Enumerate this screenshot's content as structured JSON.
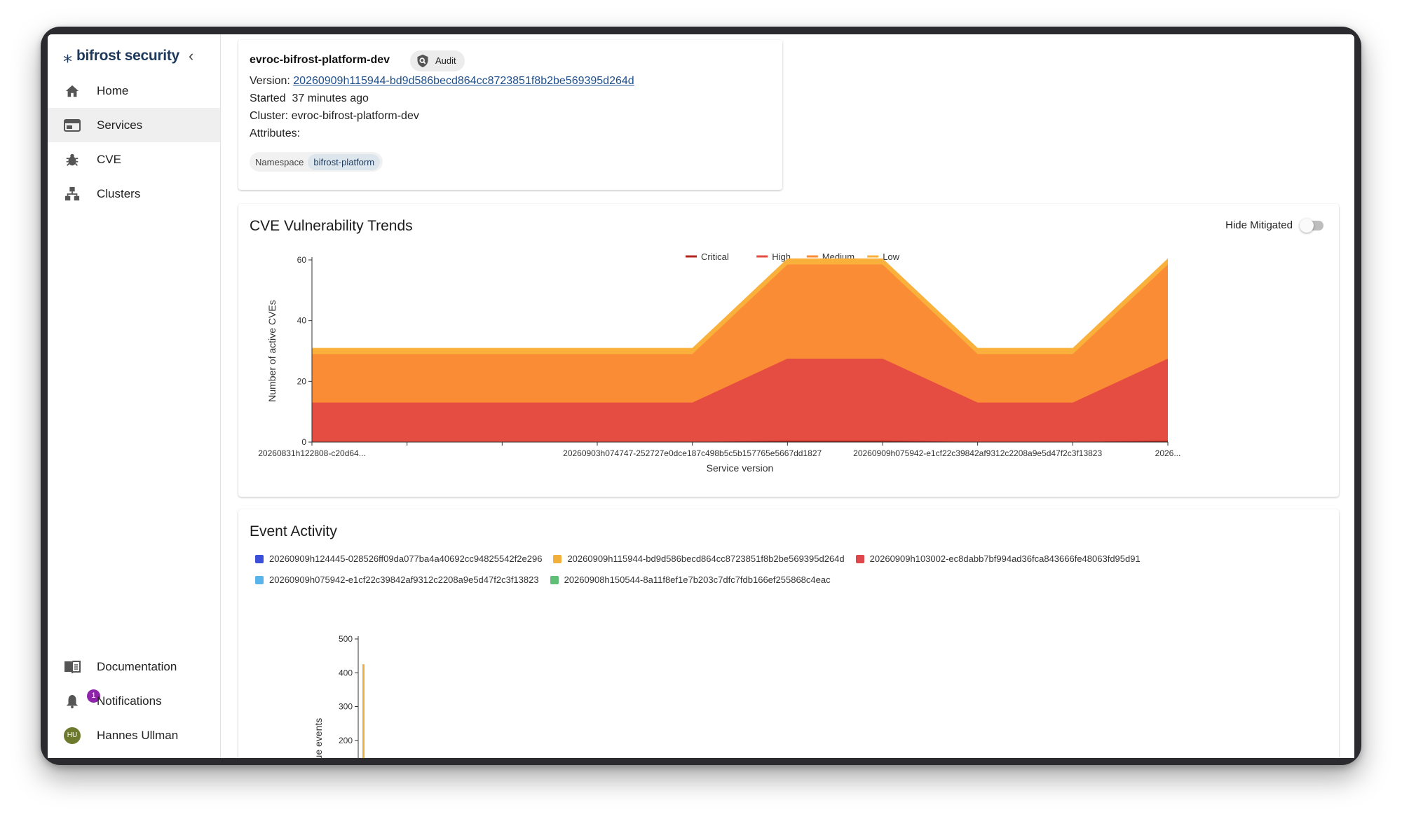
{
  "brand": {
    "name": "bifrost security",
    "collapse_icon": "chevron-left-icon"
  },
  "sidebar": {
    "items": [
      {
        "label": "Home",
        "icon": "home-icon",
        "active": false
      },
      {
        "label": "Services",
        "icon": "services-icon",
        "active": true
      },
      {
        "label": "CVE",
        "icon": "bug-icon",
        "active": false
      },
      {
        "label": "Clusters",
        "icon": "clusters-icon",
        "active": false
      }
    ],
    "bottom": [
      {
        "label": "Documentation",
        "icon": "book-icon"
      },
      {
        "label": "Notifications",
        "icon": "bell-icon",
        "badge": "1"
      },
      {
        "label": "Hannes Ullman",
        "icon": "avatar",
        "initials": "HU"
      }
    ]
  },
  "service": {
    "name": "evroc-bifrost-platform-dev",
    "chip": "Audit",
    "version_label": "Version:",
    "version": "20260909h115944-bd9d586becd864cc8723851f8b2be569395d264d",
    "started_label": "Started",
    "started": "37 minutes ago",
    "cluster_label": "Cluster:",
    "cluster": "evroc-bifrost-platform-dev",
    "attributes_label": "Attributes:",
    "namespace_key": "Namespace",
    "namespace_value": "bifrost-platform"
  },
  "cve_card": {
    "title": "CVE Vulnerability Trends",
    "toggle_label": "Hide Mitigated",
    "toggle_on": false
  },
  "event_card": {
    "title": "Event Activity"
  },
  "chart_data": [
    {
      "type": "area",
      "stacked": true,
      "ylabel": "Number of active CVEs",
      "xlabel": "Service version",
      "ylim": [
        0,
        60
      ],
      "yticks": [
        0,
        20,
        40,
        60
      ],
      "legend_position": "top-center",
      "x_tick_labels": [
        "20260831h122808-c20d64...",
        "20260903h074747-252727e0dce187c498b5c5b157765e5667dd1827",
        "20260909h075942-e1cf22c39842af9312c2208a9e5d47f2c3f13823",
        "2026..."
      ],
      "series": [
        {
          "name": "Critical",
          "color": "#b3261e",
          "values": [
            0,
            0,
            0,
            0,
            0,
            0.5,
            0.5,
            0,
            0,
            0.5
          ]
        },
        {
          "name": "High",
          "color": "#e54d42",
          "values": [
            13,
            13,
            13,
            13,
            13,
            27,
            27,
            13,
            13,
            27
          ]
        },
        {
          "name": "Medium",
          "color": "#fb8c36",
          "values": [
            16,
            16,
            16,
            16,
            16,
            31,
            31,
            16,
            16,
            31
          ]
        },
        {
          "name": "Low",
          "color": "#f9b13c",
          "values": [
            2,
            2,
            2,
            2,
            2,
            2,
            2,
            2,
            2,
            2
          ]
        }
      ]
    },
    {
      "type": "bar",
      "ylabel": "Unique events",
      "ylim": [
        0,
        500
      ],
      "yticks": [
        100,
        200,
        300,
        400,
        500
      ],
      "series": [
        {
          "name": "20260909h124445-028526ff09da077ba4a40692cc94825542f2e296",
          "color": "#3b4fd8",
          "values": []
        },
        {
          "name": "20260909h115944-bd9d586becd864cc8723851f8b2be569395d264d",
          "color": "#f2b03a",
          "values": [
            425
          ]
        },
        {
          "name": "20260909h103002-ec8dabb7bf994ad36fca843666fe48063fd95d91",
          "color": "#e0474c",
          "values": []
        },
        {
          "name": "20260909h075942-e1cf22c39842af9312c2208a9e5d47f2c3f13823",
          "color": "#5ab4ec",
          "values": []
        },
        {
          "name": "20260908h150544-8a11f8ef1e7b203c7dfc7fdb166ef255868c4eac",
          "color": "#5fbf77",
          "values": []
        }
      ]
    }
  ]
}
